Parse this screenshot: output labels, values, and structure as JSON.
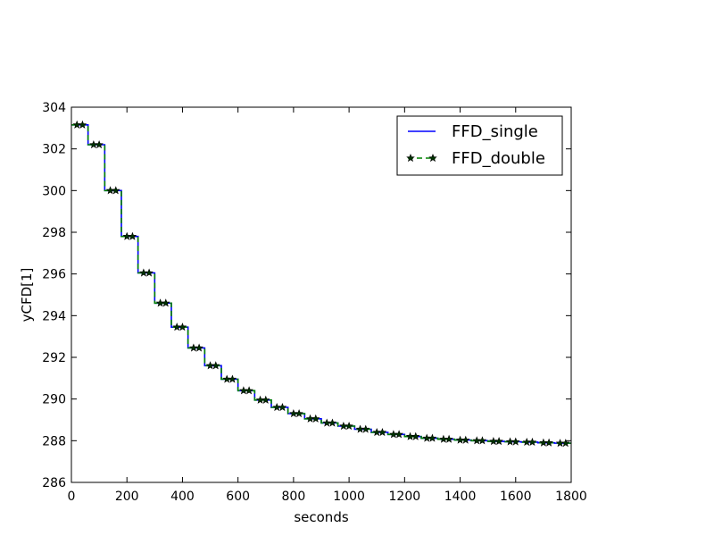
{
  "chart_data": {
    "type": "line",
    "xlabel": "seconds",
    "ylabel": "yCFD[1]",
    "xlim": [
      0,
      1800
    ],
    "ylim": [
      286,
      304
    ],
    "xticks": [
      0,
      200,
      400,
      600,
      800,
      1000,
      1200,
      1400,
      1600,
      1800
    ],
    "yticks": [
      286,
      288,
      290,
      292,
      294,
      296,
      298,
      300,
      302,
      304
    ],
    "grid": false,
    "legend_position": "top-right",
    "step_interval": 60,
    "x": [
      0,
      60,
      120,
      180,
      240,
      300,
      360,
      420,
      480,
      540,
      600,
      660,
      720,
      780,
      840,
      900,
      960,
      1020,
      1080,
      1140,
      1200,
      1260,
      1320,
      1380,
      1440,
      1500,
      1560,
      1620,
      1680,
      1740,
      1800
    ],
    "levels": [
      303.15,
      302.2,
      300.0,
      297.8,
      296.05,
      294.6,
      293.45,
      292.45,
      291.6,
      290.95,
      290.4,
      289.95,
      289.6,
      289.3,
      289.05,
      288.85,
      288.7,
      288.55,
      288.4,
      288.3,
      288.2,
      288.12,
      288.07,
      288.03,
      288.0,
      287.97,
      287.95,
      287.93,
      287.9,
      287.88
    ],
    "series": [
      {
        "name": "FFD_single",
        "color": "#0000ff",
        "style": "solid-step"
      },
      {
        "name": "FFD_double",
        "color": "#008000",
        "marker_color": "#003300",
        "style": "dashed-step-star"
      }
    ]
  }
}
